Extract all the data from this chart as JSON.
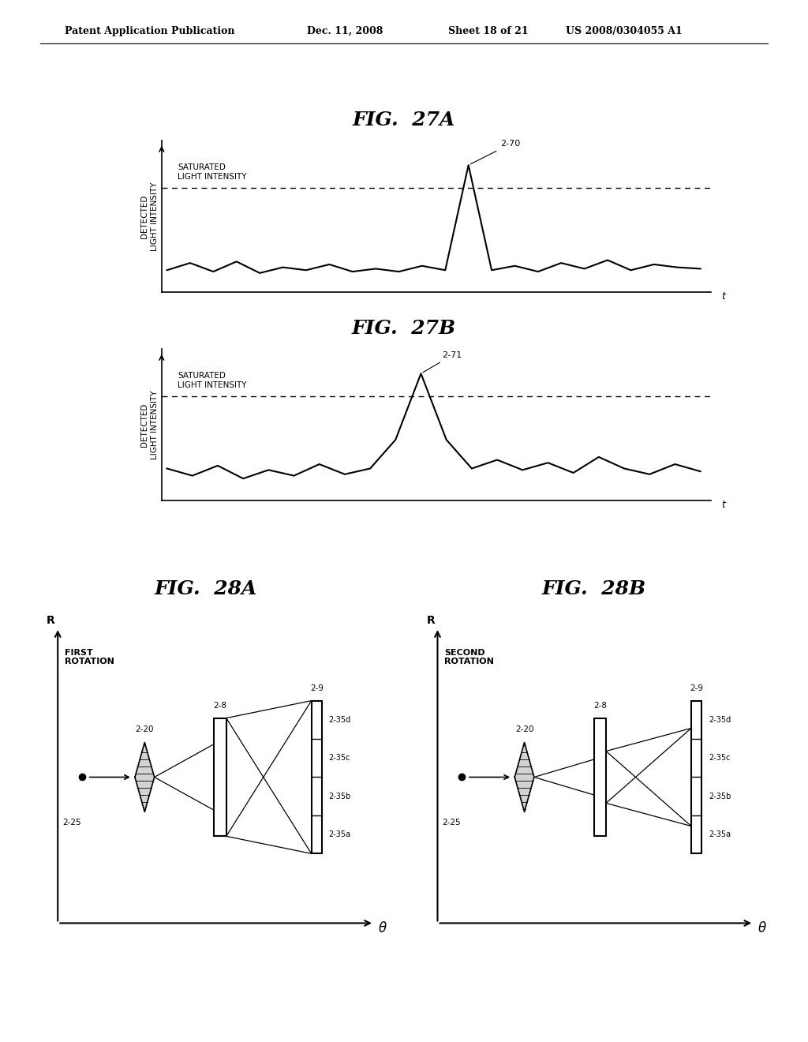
{
  "bg_color": "#ffffff",
  "header_text": "Patent Application Publication",
  "header_date": "Dec. 11, 2008",
  "header_sheet": "Sheet 18 of 21",
  "header_patent": "US 2008/0304055 A1",
  "fig27a_title": "FIG.  27A",
  "fig27b_title": "FIG.  27B",
  "fig28a_title": "FIG.  28A",
  "fig28b_title": "FIG.  28B",
  "saturated_label": "SATURATED\nLIGHT INTENSITY",
  "detected_label": "DETECTED\nLIGHT INTENSITY",
  "label_270": "2-70",
  "label_271": "2-71",
  "fig27a_signal": [
    0.15,
    0.2,
    0.14,
    0.21,
    0.13,
    0.17,
    0.15,
    0.19,
    0.14,
    0.16,
    0.14,
    0.18,
    0.15,
    0.88,
    0.15,
    0.18,
    0.14,
    0.2,
    0.16,
    0.22,
    0.15,
    0.19,
    0.17,
    0.16
  ],
  "fig27b_signal": [
    0.22,
    0.17,
    0.24,
    0.15,
    0.21,
    0.17,
    0.25,
    0.18,
    0.22,
    0.42,
    0.88,
    0.42,
    0.22,
    0.28,
    0.21,
    0.26,
    0.19,
    0.3,
    0.22,
    0.18,
    0.25,
    0.2
  ],
  "saturated_level": 0.72,
  "first_rotation_label": "FIRST\nROTATION",
  "second_rotation_label": "SECOND\nROTATION"
}
